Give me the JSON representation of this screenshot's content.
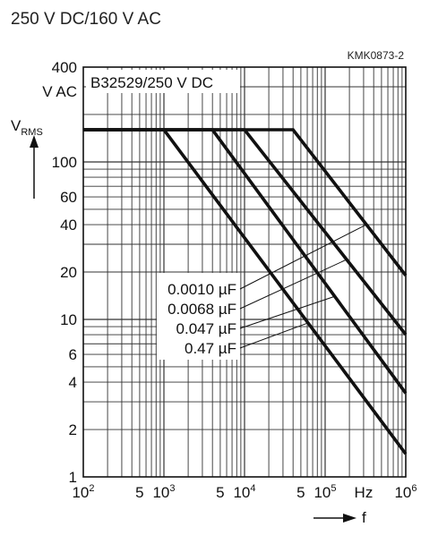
{
  "header": {
    "title": "250 V DC/160 V AC",
    "reference": "KMK0873-2"
  },
  "chart_data": {
    "type": "line",
    "title": "250 V DC/160 V AC",
    "inset_label": "B32529/250 V DC",
    "x_scale": "log",
    "y_scale": "log",
    "xlim": [
      100,
      1000000
    ],
    "ylim": [
      1,
      400
    ],
    "grid": true,
    "xlabel_unit": "Hz",
    "xlabel_symbol": "f",
    "ylabel_main": "V",
    "ylabel_sub": "RMS",
    "y_top_unit": "V AC",
    "x_ticks": [
      {
        "value": 100,
        "base": "10",
        "exp": "2"
      },
      {
        "value": 500,
        "base": "5",
        "exp": ""
      },
      {
        "value": 1000,
        "base": "10",
        "exp": "3"
      },
      {
        "value": 5000,
        "base": "5",
        "exp": ""
      },
      {
        "value": 10000,
        "base": "10",
        "exp": "4"
      },
      {
        "value": 50000,
        "base": "5",
        "exp": ""
      },
      {
        "value": 100000,
        "base": "10",
        "exp": "5"
      },
      {
        "value": 300000,
        "base": "Hz",
        "exp": ""
      },
      {
        "value": 1000000,
        "base": "10",
        "exp": "6"
      }
    ],
    "y_ticks": [
      {
        "value": 400,
        "label": "400"
      },
      {
        "value": 100,
        "label": "100"
      },
      {
        "value": 60,
        "label": "60"
      },
      {
        "value": 40,
        "label": "40"
      },
      {
        "value": 20,
        "label": "20"
      },
      {
        "value": 10,
        "label": "10"
      },
      {
        "value": 6,
        "label": "6"
      },
      {
        "value": 4,
        "label": "4"
      },
      {
        "value": 2,
        "label": "2"
      },
      {
        "value": 1,
        "label": "1"
      }
    ],
    "series": [
      {
        "name": "0.0010 µF",
        "points": [
          [
            100,
            160
          ],
          [
            40000,
            160
          ],
          [
            1000000,
            19
          ]
        ]
      },
      {
        "name": "0.0068 µF",
        "points": [
          [
            100,
            160
          ],
          [
            10000,
            160
          ],
          [
            1000000,
            8
          ]
        ]
      },
      {
        "name": "0.047 µF",
        "points": [
          [
            100,
            160
          ],
          [
            4000,
            160
          ],
          [
            1000000,
            3.4
          ]
        ]
      },
      {
        "name": "0.47 µF",
        "points": [
          [
            100,
            160
          ],
          [
            1000,
            160
          ],
          [
            1000000,
            1.4
          ]
        ]
      }
    ]
  }
}
